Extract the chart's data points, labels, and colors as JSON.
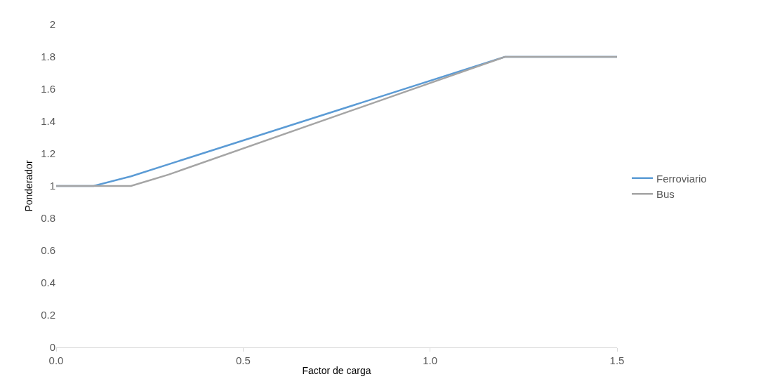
{
  "chart_data": {
    "type": "line",
    "xlabel": "Factor de carga",
    "ylabel": "Ponderador",
    "xlim": [
      0,
      1.5
    ],
    "xticks": [
      {
        "value": 0,
        "label": "0.0"
      },
      {
        "value": 0.5,
        "label": "0.5"
      },
      {
        "value": 1,
        "label": "1.0"
      },
      {
        "value": 1.5,
        "label": "1.5"
      }
    ],
    "ylim": [
      0,
      2
    ],
    "yticks": [
      0,
      0.2,
      0.4,
      0.6,
      0.8,
      1,
      1.2,
      1.4,
      1.6,
      1.8,
      2
    ],
    "legend": "right",
    "marker": "none",
    "line_style": "solid",
    "series": [
      {
        "name": "Ferroviario",
        "color": "#5b9bd5",
        "x": [
          0,
          0.1,
          0.2,
          1.2,
          1.5
        ],
        "values": [
          1,
          1,
          1.06,
          1.8,
          1.8
        ]
      },
      {
        "name": "Bus",
        "color": "#a5a5a5",
        "x": [
          0,
          0.2,
          0.3,
          1.2,
          1.5
        ],
        "values": [
          1,
          1,
          1.07,
          1.8,
          1.8
        ]
      }
    ]
  }
}
